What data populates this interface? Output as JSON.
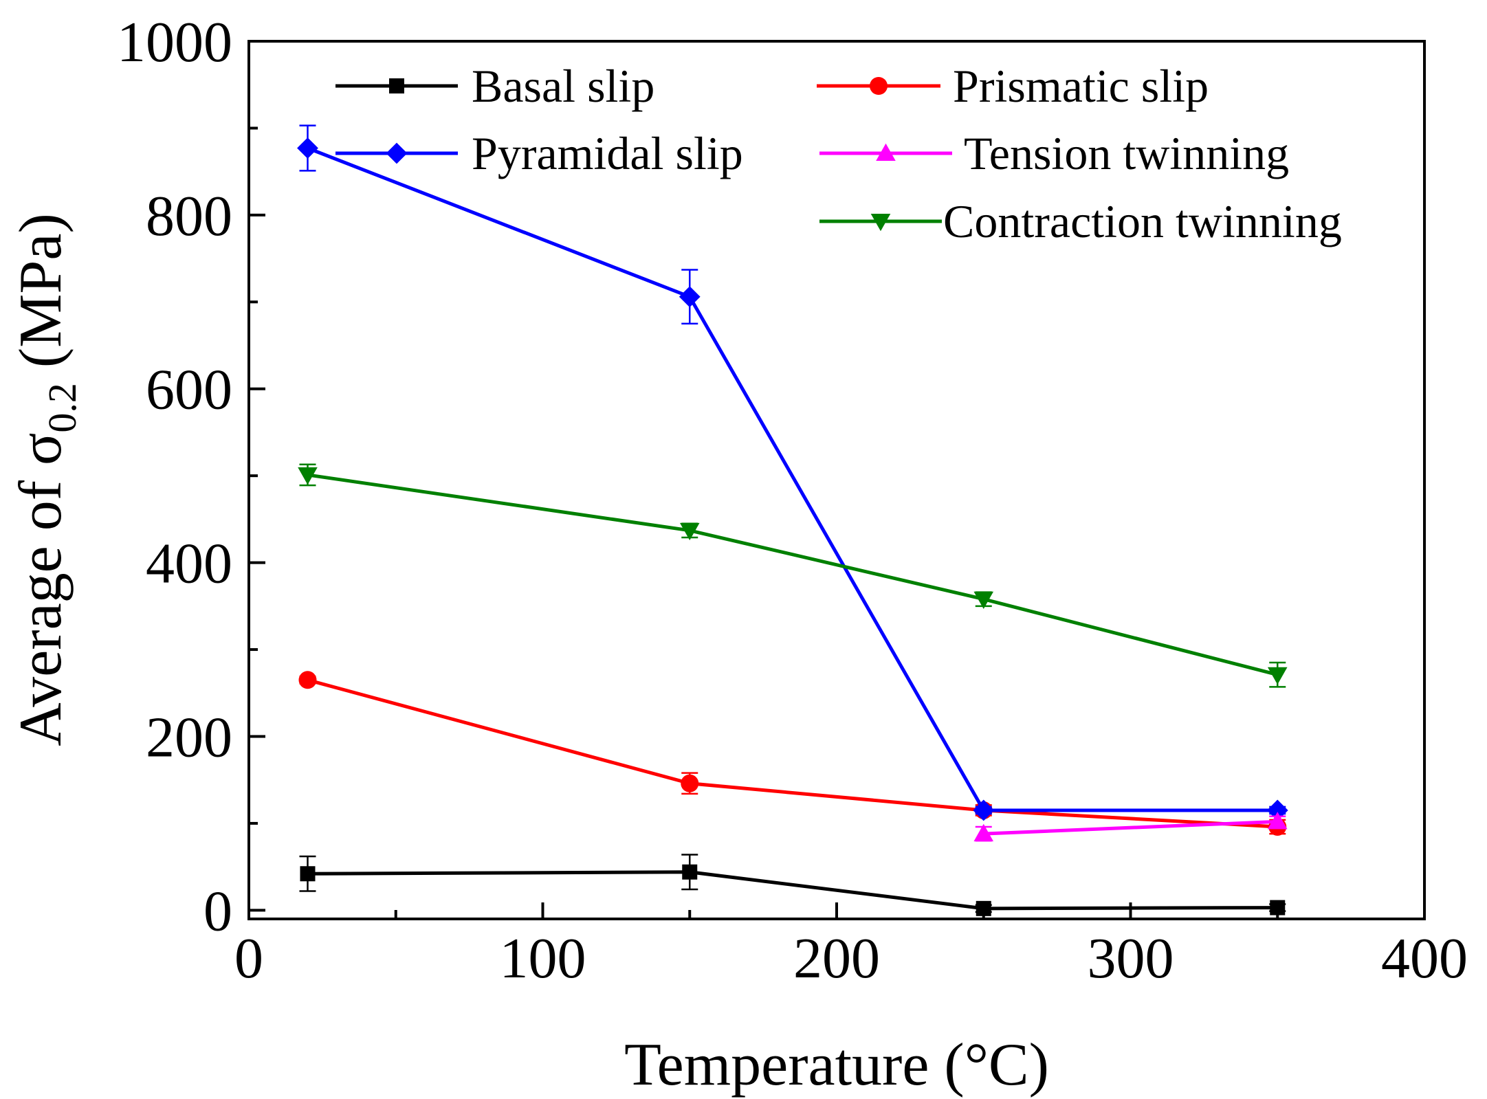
{
  "chart_data": {
    "type": "line",
    "xlabel": "Temperature (°C)",
    "ylabel_prefix": "Average of σ",
    "ylabel_subscript": "0.2",
    "ylabel_suffix": " (MPa)",
    "xlim": [
      0,
      400
    ],
    "ylim": [
      -10,
      1000
    ],
    "x_ticks": [
      0,
      100,
      200,
      300,
      400
    ],
    "y_ticks": [
      0,
      200,
      400,
      600,
      800,
      1000
    ],
    "x": [
      20,
      150,
      250,
      350
    ],
    "series": [
      {
        "name": "Basal slip",
        "color": "#000000",
        "marker": "square",
        "x": [
          20,
          150,
          250,
          350
        ],
        "values": [
          42,
          44,
          2,
          3
        ],
        "errors": [
          20,
          20,
          4,
          4
        ]
      },
      {
        "name": "Prismatic slip",
        "color": "#ff0000",
        "marker": "circle",
        "x": [
          20,
          150,
          250,
          350
        ],
        "values": [
          265,
          146,
          115,
          96
        ],
        "errors": [
          4,
          12,
          6,
          8
        ]
      },
      {
        "name": "Pyramidal slip",
        "color": "#0000ff",
        "marker": "diamond",
        "x": [
          20,
          150,
          250,
          350
        ],
        "values": [
          877,
          706,
          115,
          115
        ],
        "errors": [
          26,
          31,
          4,
          4
        ]
      },
      {
        "name": "Tension twinning",
        "color": "#ff00ff",
        "marker": "triangle-up",
        "x": [
          250,
          350
        ],
        "values": [
          88,
          102
        ],
        "errors": [
          8,
          6
        ]
      },
      {
        "name": "Contraction twinning",
        "color": "#008000",
        "marker": "triangle-down",
        "x": [
          20,
          150,
          250,
          350
        ],
        "values": [
          501,
          437,
          358,
          271
        ],
        "errors": [
          12,
          8,
          8,
          14
        ]
      }
    ],
    "legend_position": "top-right",
    "grid": false
  }
}
